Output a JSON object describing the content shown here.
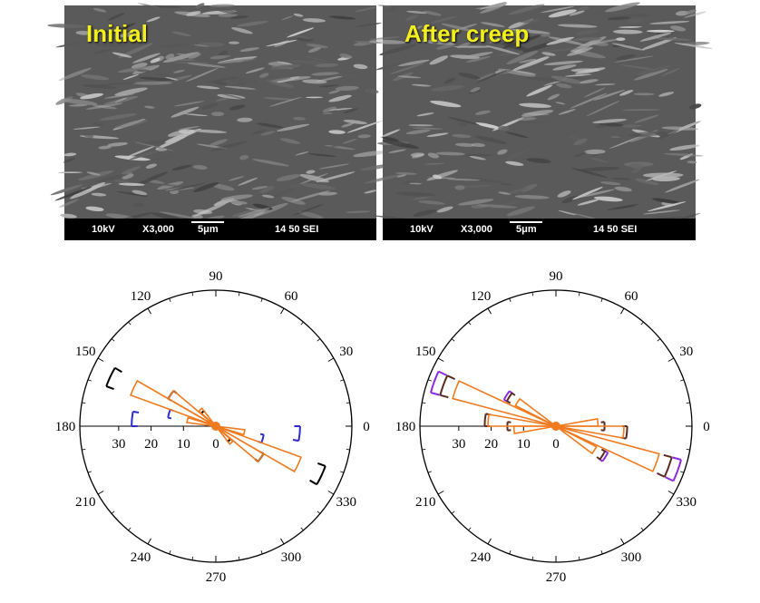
{
  "panels": [
    {
      "label": "Initial",
      "sem": {
        "voltage": "10kV",
        "magnification": "X3,000",
        "scale": "5μm",
        "info": "14 50 SEI"
      },
      "rose": {
        "angle_labels": [
          "90",
          "60",
          "30",
          "0",
          "330",
          "300",
          "270",
          "240",
          "210",
          "180",
          "150",
          "120"
        ],
        "radial_labels": [
          "30",
          "20",
          "10",
          "0"
        ],
        "petals": [
          {
            "color": "#000000",
            "shape": "rect",
            "sectors": [
              {
                "angle": 155,
                "r": 36
              },
              {
                "angle": 145,
                "r": 17
              },
              {
                "angle": 133,
                "r": 6
              },
              {
                "angle": 335,
                "r": 36
              },
              {
                "angle": 325,
                "r": 17
              },
              {
                "angle": 313,
                "r": 6
              }
            ]
          },
          {
            "color": "#2b2bd0",
            "shape": "rect",
            "sectors": [
              {
                "angle": 175,
                "r": 26
              },
              {
                "angle": 165,
                "r": 15
              },
              {
                "angle": 355,
                "r": 26
              },
              {
                "angle": 345,
                "r": 15
              }
            ]
          },
          {
            "color": "#f07a1e",
            "shape": "wedge",
            "sectors": [
              {
                "angle": 155,
                "r": 28
              },
              {
                "angle": 145,
                "r": 17
              },
              {
                "angle": 133,
                "r": 7
              },
              {
                "angle": 168,
                "r": 9
              },
              {
                "angle": 335,
                "r": 28
              },
              {
                "angle": 325,
                "r": 17
              },
              {
                "angle": 313,
                "r": 7
              },
              {
                "angle": 348,
                "r": 9
              }
            ]
          }
        ]
      }
    },
    {
      "label": "After creep",
      "sem": {
        "voltage": "10kV",
        "magnification": "X3,000",
        "scale": "5μm",
        "info": "14 50 SEI"
      },
      "rose": {
        "angle_labels": [
          "90",
          "60",
          "30",
          "0",
          "330",
          "300",
          "270",
          "240",
          "210",
          "180",
          "150",
          "120"
        ],
        "radial_labels": [
          "30",
          "20",
          "10",
          "0"
        ],
        "petals": [
          {
            "color": "#8a2be2",
            "shape": "rect",
            "sectors": [
              {
                "angle": 160,
                "r": 40
              },
              {
                "angle": 340,
                "r": 40
              },
              {
                "angle": 148,
                "r": 18
              },
              {
                "angle": 328,
                "r": 18
              }
            ]
          },
          {
            "color": "#5a2b20",
            "shape": "rect",
            "sectors": [
              {
                "angle": 160,
                "r": 37
              },
              {
                "angle": 340,
                "r": 37
              },
              {
                "angle": 175,
                "r": 22
              },
              {
                "angle": 355,
                "r": 22
              },
              {
                "angle": 180,
                "r": 15
              },
              {
                "angle": 0,
                "r": 15
              },
              {
                "angle": 148,
                "r": 17
              },
              {
                "angle": 328,
                "r": 17
              }
            ]
          },
          {
            "color": "#f07a1e",
            "shape": "wedge",
            "sectors": [
              {
                "angle": 160,
                "r": 33
              },
              {
                "angle": 340,
                "r": 33
              },
              {
                "angle": 175,
                "r": 21
              },
              {
                "angle": 355,
                "r": 21
              },
              {
                "angle": 148,
                "r": 14
              },
              {
                "angle": 328,
                "r": 14
              },
              {
                "angle": 185,
                "r": 13
              },
              {
                "angle": 5,
                "r": 13
              }
            ]
          }
        ]
      }
    }
  ]
}
